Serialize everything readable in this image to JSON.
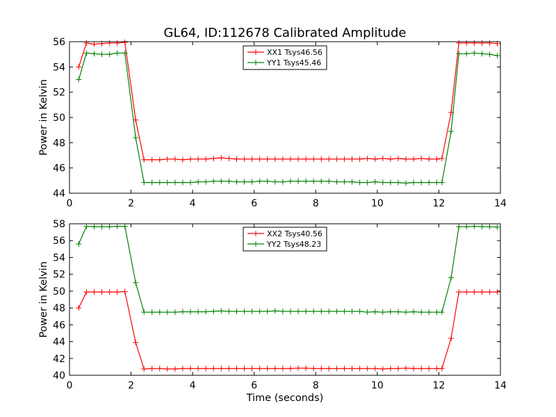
{
  "figure_title": "GL64, ID:112678 Calibrated Amplitude",
  "chart_data": [
    {
      "type": "line",
      "ylabel": "Power in Kelvin",
      "xlabel": "",
      "xlim": [
        0,
        14
      ],
      "ylim": [
        44,
        56
      ],
      "xticks": [
        0,
        2,
        4,
        6,
        8,
        10,
        12,
        14
      ],
      "yticks": [
        44,
        46,
        48,
        50,
        52,
        54,
        56
      ],
      "grid": false,
      "legend_position": "top-center",
      "x": [
        0.3,
        0.55,
        0.8,
        1.05,
        1.3,
        1.55,
        1.8,
        2.15,
        2.42,
        2.68,
        2.93,
        3.18,
        3.43,
        3.68,
        3.93,
        4.18,
        4.43,
        4.68,
        4.93,
        5.18,
        5.43,
        5.68,
        5.93,
        6.18,
        6.43,
        6.68,
        6.93,
        7.18,
        7.43,
        7.68,
        7.93,
        8.18,
        8.43,
        8.68,
        8.93,
        9.18,
        9.43,
        9.68,
        9.93,
        10.18,
        10.43,
        10.68,
        10.93,
        11.18,
        11.43,
        11.68,
        11.93,
        12.1,
        12.4,
        12.65,
        12.9,
        13.15,
        13.4,
        13.65,
        13.9
      ],
      "series": [
        {
          "name": "XX1 Tsys46.56",
          "color": "#ff0000",
          "values": [
            54.0,
            55.9,
            55.8,
            55.85,
            55.9,
            55.9,
            55.95,
            49.8,
            46.65,
            46.65,
            46.65,
            46.7,
            46.7,
            46.65,
            46.7,
            46.7,
            46.7,
            46.75,
            46.8,
            46.75,
            46.7,
            46.7,
            46.7,
            46.7,
            46.7,
            46.7,
            46.7,
            46.7,
            46.7,
            46.7,
            46.7,
            46.7,
            46.7,
            46.7,
            46.7,
            46.7,
            46.7,
            46.75,
            46.7,
            46.75,
            46.7,
            46.75,
            46.7,
            46.7,
            46.75,
            46.7,
            46.7,
            46.75,
            50.4,
            55.9,
            55.9,
            55.9,
            55.9,
            55.9,
            55.85
          ]
        },
        {
          "name": "YY1 Tsys45.46",
          "color": "#008000",
          "values": [
            53.0,
            55.1,
            55.05,
            55.0,
            55.0,
            55.1,
            55.1,
            48.4,
            44.85,
            44.85,
            44.85,
            44.85,
            44.85,
            44.85,
            44.85,
            44.9,
            44.9,
            44.95,
            44.95,
            44.95,
            44.9,
            44.9,
            44.9,
            44.95,
            44.95,
            44.9,
            44.9,
            44.95,
            44.95,
            44.95,
            44.95,
            44.95,
            44.95,
            44.9,
            44.9,
            44.9,
            44.85,
            44.85,
            44.9,
            44.85,
            44.85,
            44.85,
            44.8,
            44.85,
            44.85,
            44.85,
            44.85,
            44.85,
            48.9,
            55.05,
            55.05,
            55.1,
            55.05,
            55.0,
            54.9
          ]
        }
      ]
    },
    {
      "type": "line",
      "ylabel": "Power in Kelvin",
      "xlabel": "Time (seconds)",
      "xlim": [
        0,
        14
      ],
      "ylim": [
        40,
        58
      ],
      "xticks": [
        0,
        2,
        4,
        6,
        8,
        10,
        12,
        14
      ],
      "yticks": [
        40,
        42,
        44,
        46,
        48,
        50,
        52,
        54,
        56,
        58
      ],
      "grid": false,
      "legend_position": "top-center",
      "x": [
        0.3,
        0.55,
        0.8,
        1.05,
        1.3,
        1.55,
        1.8,
        2.15,
        2.42,
        2.68,
        2.93,
        3.18,
        3.43,
        3.68,
        3.93,
        4.18,
        4.43,
        4.68,
        4.93,
        5.18,
        5.43,
        5.68,
        5.93,
        6.18,
        6.43,
        6.68,
        6.93,
        7.18,
        7.43,
        7.68,
        7.93,
        8.18,
        8.43,
        8.68,
        8.93,
        9.18,
        9.43,
        9.68,
        9.93,
        10.18,
        10.43,
        10.68,
        10.93,
        11.18,
        11.43,
        11.68,
        11.93,
        12.1,
        12.4,
        12.65,
        12.9,
        13.15,
        13.4,
        13.65,
        13.9
      ],
      "series": [
        {
          "name": "XX2 Tsys40.56",
          "color": "#ff0000",
          "values": [
            48.0,
            49.9,
            49.9,
            49.9,
            49.9,
            49.9,
            49.95,
            43.9,
            40.75,
            40.8,
            40.8,
            40.75,
            40.75,
            40.8,
            40.8,
            40.8,
            40.8,
            40.8,
            40.8,
            40.8,
            40.8,
            40.8,
            40.8,
            40.8,
            40.8,
            40.8,
            40.8,
            40.8,
            40.85,
            40.85,
            40.8,
            40.8,
            40.8,
            40.8,
            40.8,
            40.8,
            40.8,
            40.8,
            40.8,
            40.75,
            40.8,
            40.8,
            40.85,
            40.8,
            40.8,
            40.8,
            40.8,
            40.8,
            44.4,
            49.9,
            49.9,
            49.9,
            49.9,
            49.9,
            49.9
          ]
        },
        {
          "name": "YY2 Tsys48.23",
          "color": "#008000",
          "values": [
            55.6,
            57.7,
            57.65,
            57.65,
            57.65,
            57.7,
            57.7,
            51.0,
            47.5,
            47.5,
            47.5,
            47.5,
            47.5,
            47.55,
            47.55,
            47.55,
            47.55,
            47.6,
            47.65,
            47.6,
            47.6,
            47.6,
            47.6,
            47.6,
            47.6,
            47.65,
            47.6,
            47.6,
            47.6,
            47.6,
            47.6,
            47.6,
            47.6,
            47.6,
            47.6,
            47.6,
            47.6,
            47.5,
            47.55,
            47.5,
            47.55,
            47.55,
            47.5,
            47.55,
            47.5,
            47.5,
            47.5,
            47.5,
            51.6,
            57.65,
            57.65,
            57.7,
            57.65,
            57.65,
            57.6
          ]
        }
      ]
    }
  ]
}
